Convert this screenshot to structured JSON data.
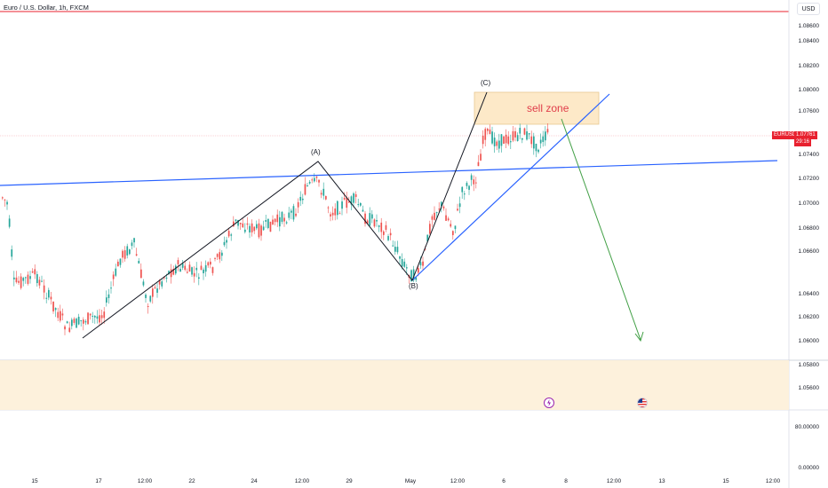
{
  "symbol": {
    "title": "Euro / U.S. Dollar, 1h, FXCM"
  },
  "currency": "USD",
  "price_axis": {
    "labels": [
      "1.08600",
      "1.08400",
      "1.08200",
      "1.08000",
      "1.07600",
      "1.07400",
      "1.07200",
      "1.07000",
      "1.06800",
      "1.06600",
      "1.06400",
      "1.06200",
      "1.06000",
      "1.05800",
      "1.05600"
    ]
  },
  "current_price": {
    "symbol": "EURUSD",
    "value": "1.07761",
    "countdown": "29:16",
    "color": "#e8212f"
  },
  "indicator_axis": {
    "labels": [
      "80.00000",
      "0.00000"
    ]
  },
  "date_axis": {
    "labels": [
      "15",
      "17",
      "12:00",
      "22",
      "24",
      "12:00",
      "29",
      "May",
      "12:00",
      "6",
      "8",
      "12:00",
      "13",
      "15",
      "12:00"
    ]
  },
  "annotations": {
    "wave_a": "(A)",
    "wave_b": "(B)",
    "wave_c": "(C)",
    "sell_zone": "sell zone"
  },
  "colors": {
    "trendline": "#2962ff",
    "zone_fill": "#fde9c8",
    "arrow": "#43a047",
    "bull": "#26a69a",
    "bear": "#ef5350",
    "alert_line": "#e8212f"
  },
  "events": [
    "lightning-icon",
    "us-flag-icon"
  ]
}
